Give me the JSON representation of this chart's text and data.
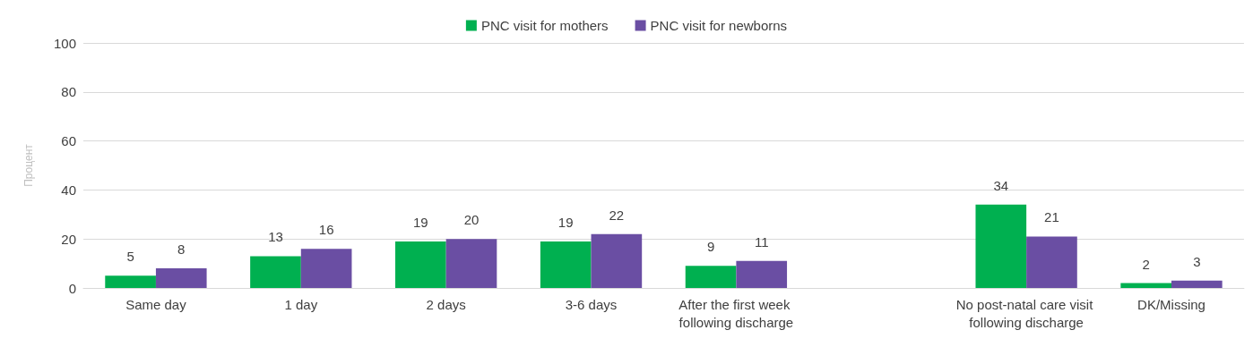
{
  "chart_data": {
    "type": "bar",
    "ylabel": "Процент",
    "categories": [
      "Same day",
      "1 day",
      "2 days",
      "3-6 days",
      "After the first week following discharge",
      null,
      "No post-natal care visit following discharge",
      "DK/Missing"
    ],
    "series": [
      {
        "name": "PNC visit for mothers",
        "color": "#00b050",
        "values": [
          5,
          13,
          19,
          19,
          9,
          null,
          34,
          2
        ]
      },
      {
        "name": "PNC visit for newborns",
        "color": "#6a4ea3",
        "values": [
          8,
          16,
          20,
          22,
          11,
          null,
          21,
          3
        ]
      }
    ],
    "ylim": [
      0,
      100
    ],
    "yticks": [
      0,
      20,
      40,
      60,
      80,
      100
    ],
    "grid": "y",
    "legend": "top",
    "data_labels": true
  }
}
